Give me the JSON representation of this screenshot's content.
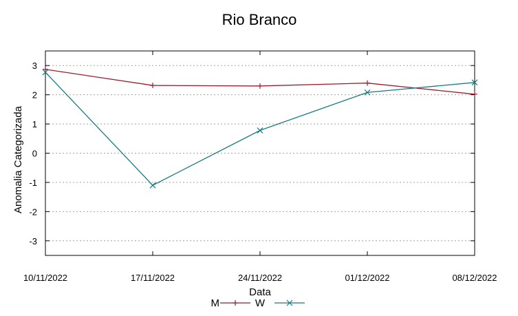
{
  "chart_data": {
    "type": "line",
    "title": "Rio Branco",
    "xlabel": "Data",
    "ylabel": "Anomalia Categorizada",
    "categories": [
      "10/11/2022",
      "17/11/2022",
      "24/11/2022",
      "01/12/2022",
      "08/12/2022"
    ],
    "yticks": [
      "-3",
      "-2",
      "-1",
      "0",
      "1",
      "2",
      "3"
    ],
    "ylim": [
      -3.5,
      3.5
    ],
    "grid": true,
    "legend_position": "bottom",
    "series": [
      {
        "name": "M",
        "values": [
          2.87,
          2.32,
          2.3,
          2.4,
          2.02
        ],
        "color": "#9b1b2a",
        "marker": "plus"
      },
      {
        "name": "W",
        "values": [
          2.77,
          -1.1,
          0.78,
          2.08,
          2.42
        ],
        "color": "#137b80",
        "marker": "cross"
      }
    ]
  }
}
